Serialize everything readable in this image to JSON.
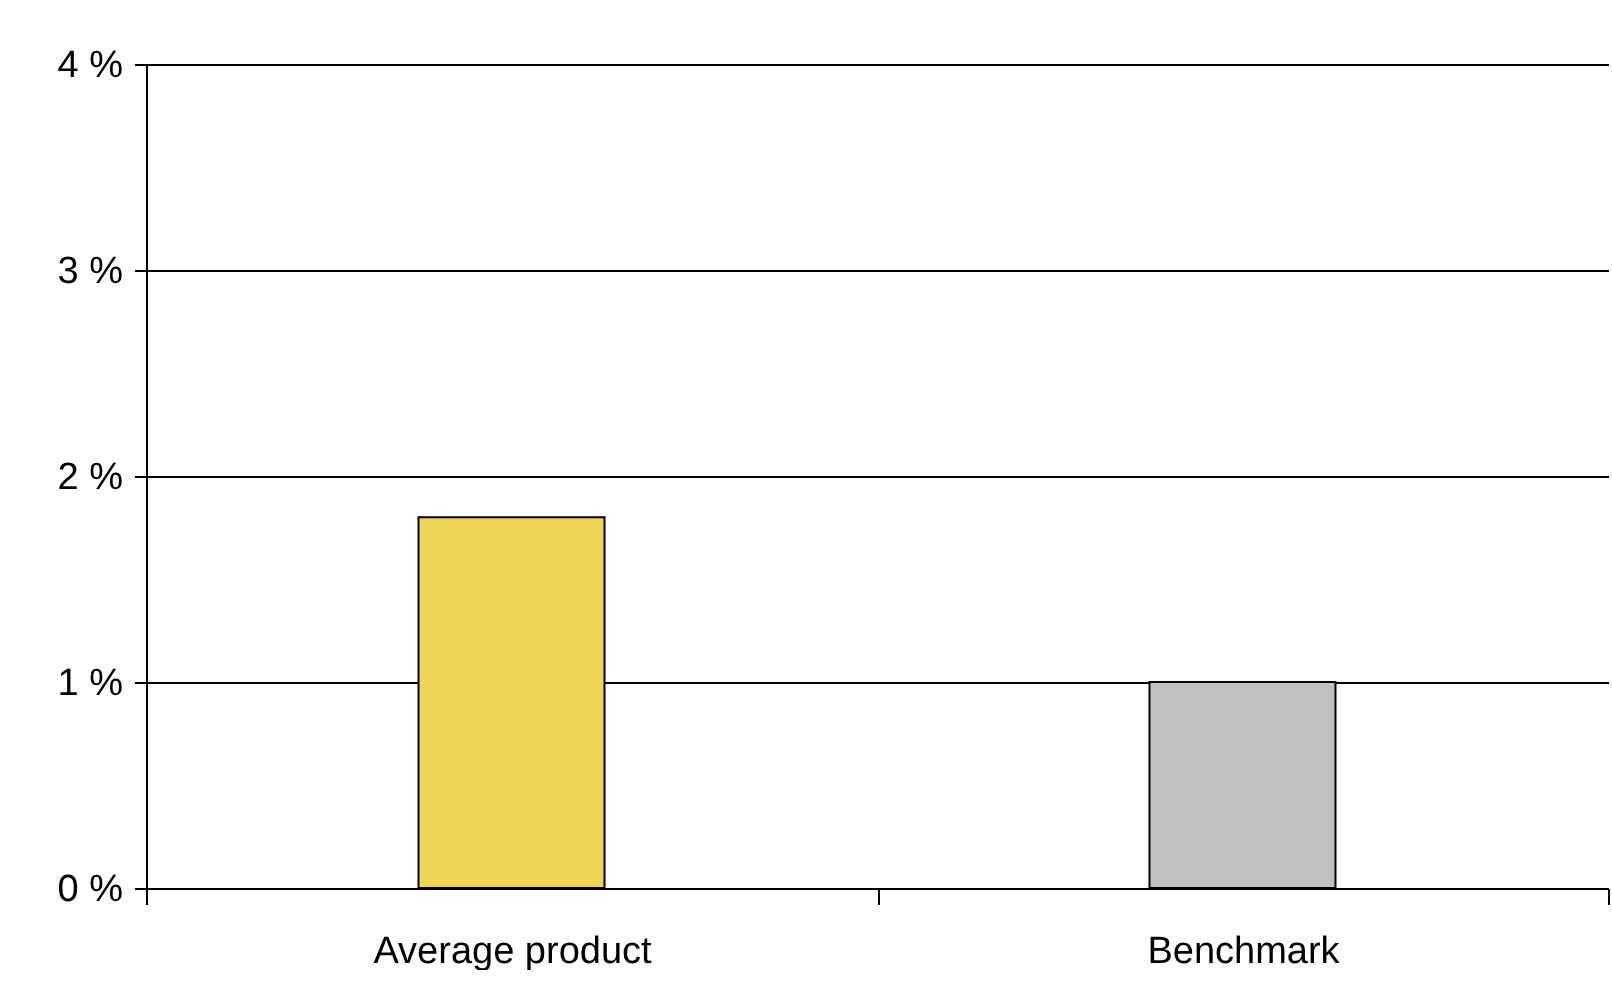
{
  "chart_data": {
    "type": "bar",
    "categories": [
      "Average product",
      "Benchmark"
    ],
    "values": [
      1.8,
      1.0
    ],
    "colors": [
      "#f0d458",
      "#c0c0c0"
    ],
    "ylim": [
      0,
      4
    ],
    "yticks": [
      {
        "value": 0,
        "label": "0 %"
      },
      {
        "value": 1,
        "label": "1 %"
      },
      {
        "value": 2,
        "label": "2 %"
      },
      {
        "value": 3,
        "label": "3 %"
      },
      {
        "value": 4,
        "label": "4 %"
      }
    ],
    "grid": "y"
  }
}
